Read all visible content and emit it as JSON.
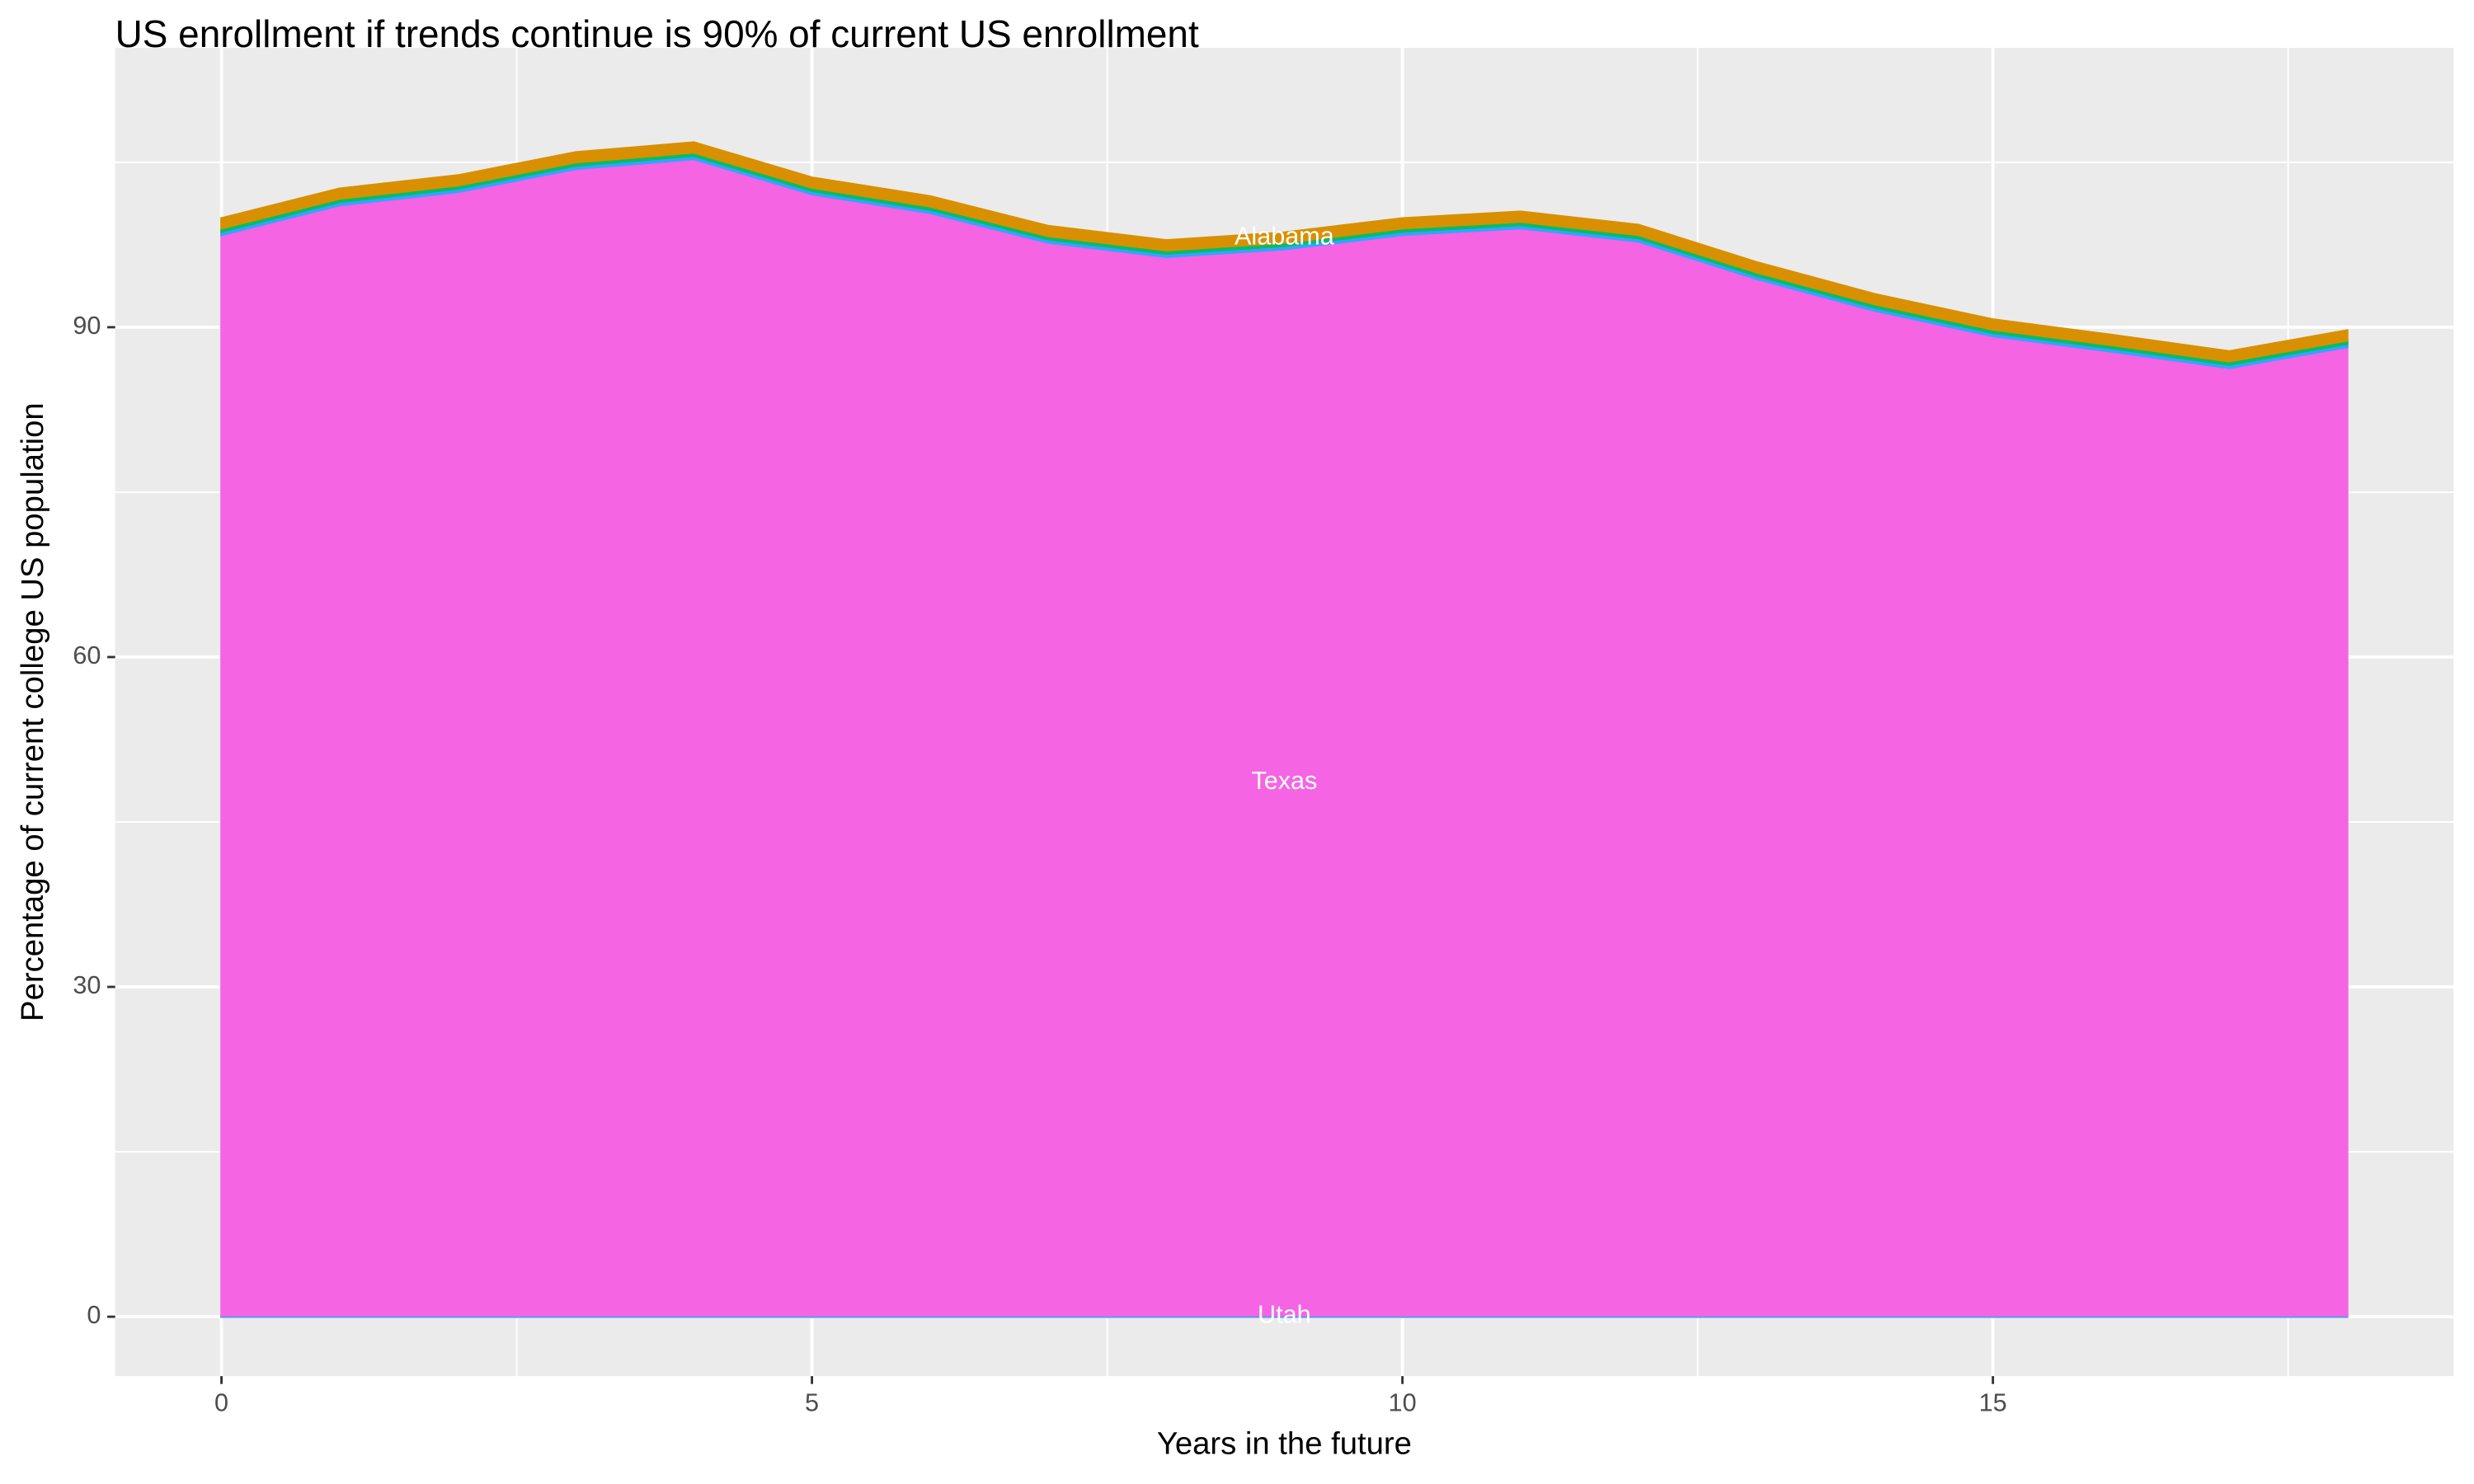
{
  "chart_data": {
    "type": "area",
    "stacked": true,
    "title": "US enrollment if trends continue is 90% of current US enrollment",
    "x_label": "Years in the future",
    "y_label": "Percentage of current college US population",
    "x": [
      0,
      1,
      2,
      3,
      4,
      5,
      6,
      7,
      8,
      9,
      10,
      11,
      12,
      13,
      14,
      15,
      16,
      17,
      18
    ],
    "series": [
      {
        "name": "Utah",
        "color": "#00A9FF",
        "values": [
          0.1,
          0.1,
          0.1,
          0.1,
          0.1,
          0.1,
          0.1,
          0.1,
          0.1,
          0.1,
          0.1,
          0.1,
          0.1,
          0.1,
          0.1,
          0.1,
          0.1,
          0.1,
          0.1
        ]
      },
      {
        "name": "Texas",
        "color": "#F564E3",
        "values": [
          98.3,
          101.0,
          102.2,
          104.3,
          105.2,
          102.0,
          100.3,
          97.6,
          96.3,
          97.0,
          98.3,
          98.9,
          97.7,
          94.3,
          91.4,
          89.1,
          87.7,
          86.2,
          88.1
        ]
      },
      {
        "color": "#35A2FF",
        "values": [
          0.3,
          0.3,
          0.3,
          0.3,
          0.3,
          0.3,
          0.3,
          0.3,
          0.3,
          0.3,
          0.3,
          0.3,
          0.3,
          0.3,
          0.3,
          0.3,
          0.3,
          0.3,
          0.3
        ]
      },
      {
        "color": "#00BE67",
        "values": [
          0.3,
          0.3,
          0.3,
          0.3,
          0.3,
          0.3,
          0.3,
          0.3,
          0.3,
          0.3,
          0.3,
          0.3,
          0.3,
          0.3,
          0.3,
          0.3,
          0.3,
          0.3,
          0.3
        ]
      },
      {
        "name": "Alabama",
        "color": "#D89000",
        "values": [
          0.9,
          0.9,
          0.9,
          0.9,
          0.9,
          0.9,
          0.9,
          0.9,
          0.9,
          0.9,
          0.9,
          0.9,
          0.9,
          0.9,
          0.9,
          0.9,
          0.9,
          0.9,
          0.9
        ]
      }
    ],
    "xlim": [
      -0.9,
      18.9
    ],
    "xticks": [
      0,
      5,
      10,
      15
    ],
    "ylim": [
      -5.4,
      115.4
    ],
    "yticks": [
      0,
      30,
      60,
      90
    ],
    "grid": true
  }
}
